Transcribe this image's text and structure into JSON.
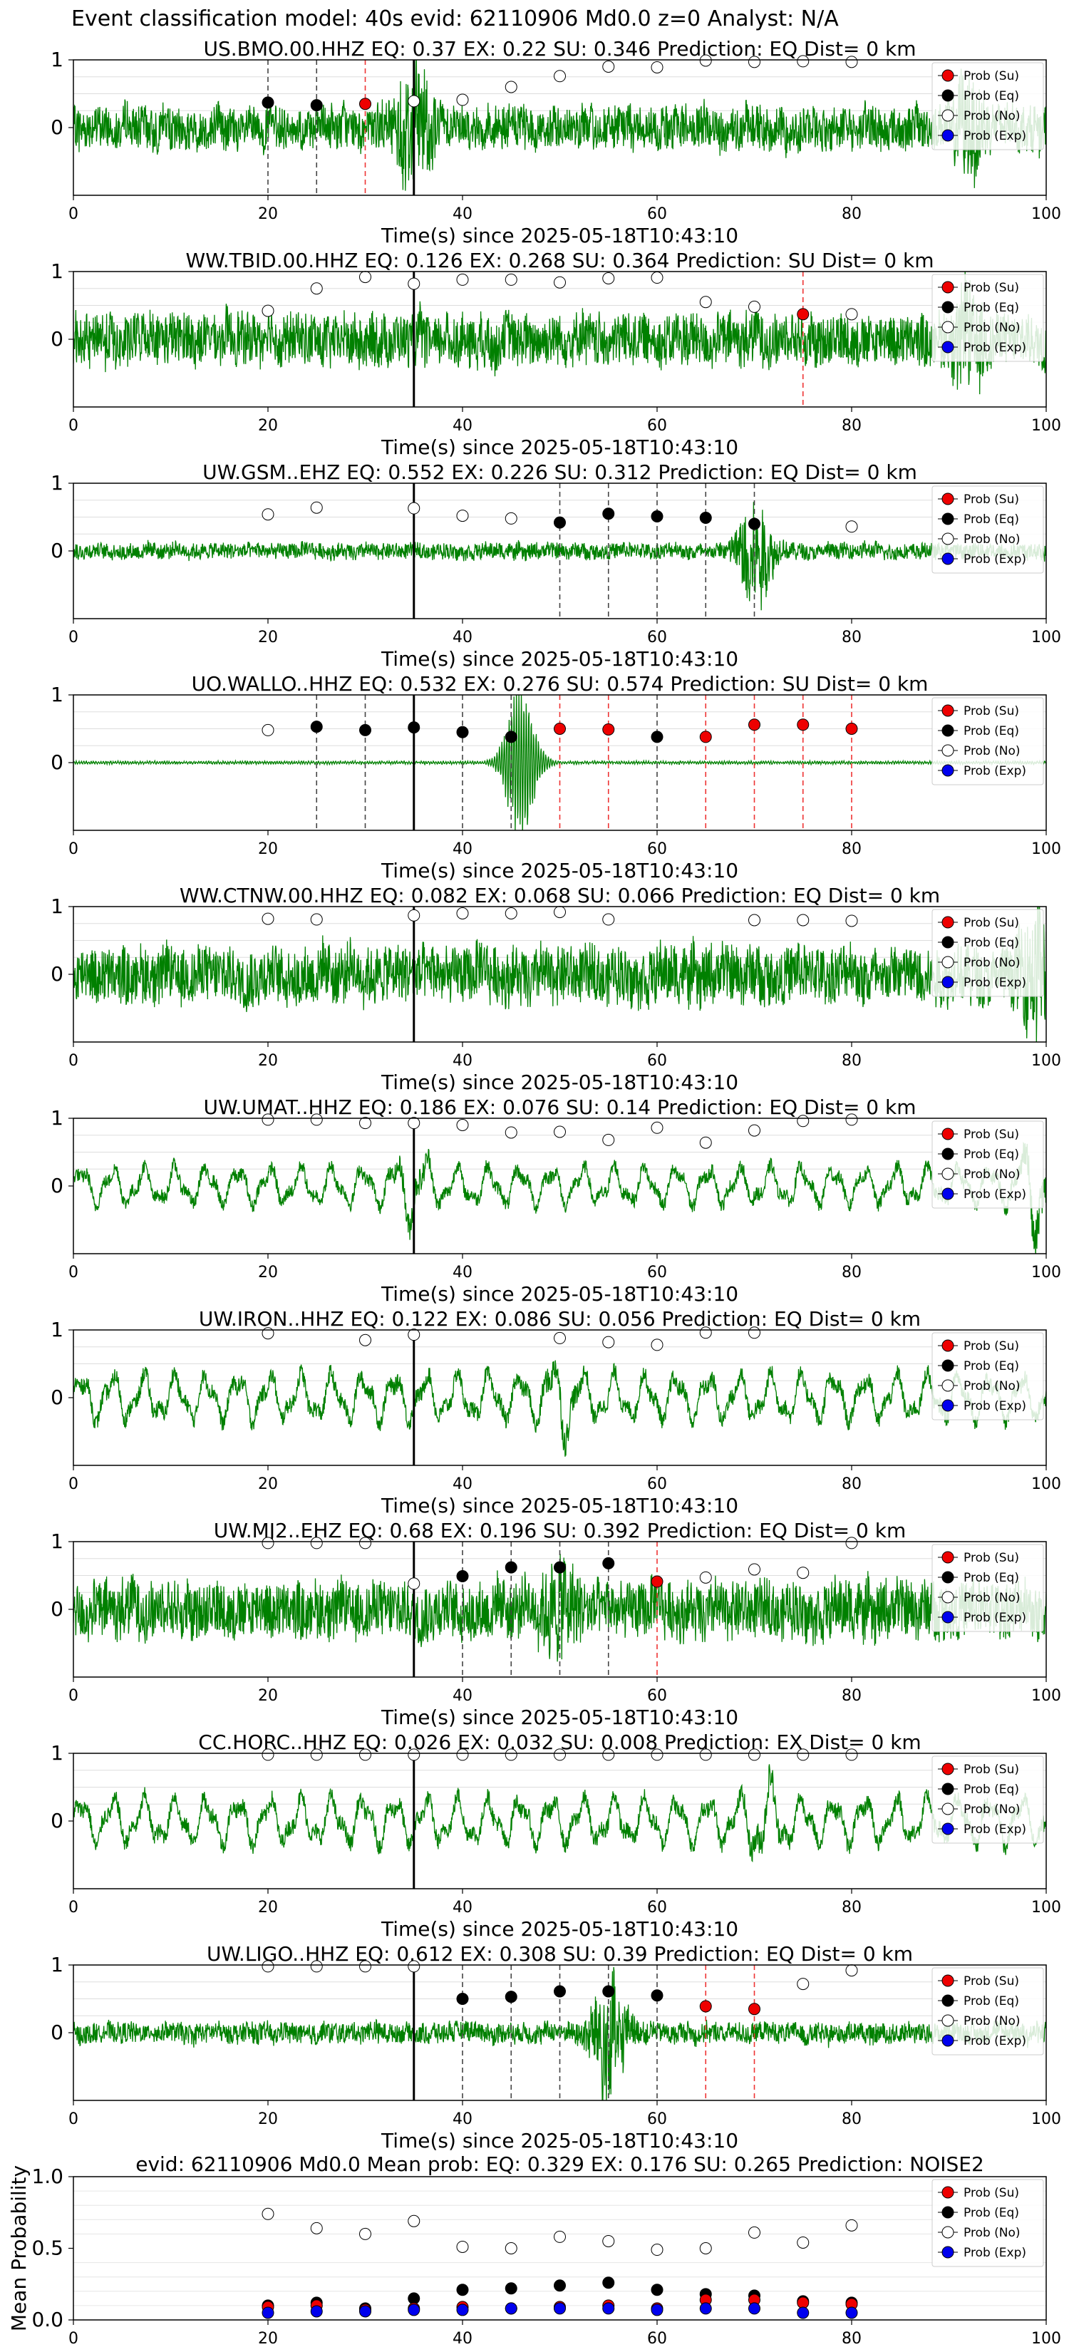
{
  "figure": {
    "suptitle": "Event classification model: 40s evid: 62110906 Md0.0 z=0 Analyst: N/A"
  },
  "legend_labels": [
    "Prob (Su)",
    "Prob (Eq)",
    "Prob (No)",
    "Prob (Exp)"
  ],
  "colors": {
    "trace": "#008000",
    "su": "#ee0000",
    "eq": "#000000",
    "no": "#ffffff",
    "exp": "#0000ee",
    "vline_su": "#ee3333",
    "vline_eq": "#444444"
  },
  "chart_data": [
    {
      "type": "line",
      "title": "US.BMO.00.HHZ   EQ: 0.37  EX: 0.22  SU: 0.346   Prediction: EQ    Dist= 0 km",
      "xlabel": "Time(s) since 2025-05-18T10:43:10",
      "xlim": [
        0,
        100
      ],
      "ylim": [
        -1,
        1
      ],
      "xticks": [
        "0",
        "20",
        "40",
        "60",
        "80",
        "100"
      ],
      "yticks": [
        "1",
        "0"
      ],
      "trace": {
        "amplitude": 0.38,
        "style": "noise",
        "events": [
          [
            35,
            0.9
          ],
          [
            92,
            0.6
          ]
        ]
      },
      "origin_line_x": 35,
      "points": [
        {
          "x": 20,
          "y": 0.37,
          "cls": "eq"
        },
        {
          "x": 25,
          "y": 0.33,
          "cls": "eq"
        },
        {
          "x": 30,
          "y": 0.35,
          "cls": "su"
        },
        {
          "x": 35,
          "y": 0.39,
          "cls": "no"
        },
        {
          "x": 40,
          "y": 0.41,
          "cls": "no"
        },
        {
          "x": 45,
          "y": 0.6,
          "cls": "no"
        },
        {
          "x": 50,
          "y": 0.76,
          "cls": "no"
        },
        {
          "x": 55,
          "y": 0.9,
          "cls": "no"
        },
        {
          "x": 60,
          "y": 0.89,
          "cls": "no"
        },
        {
          "x": 65,
          "y": 0.99,
          "cls": "no"
        },
        {
          "x": 70,
          "y": 0.97,
          "cls": "no"
        },
        {
          "x": 75,
          "y": 0.98,
          "cls": "no"
        },
        {
          "x": 80,
          "y": 0.97,
          "cls": "no"
        }
      ]
    },
    {
      "type": "line",
      "title": "WW.TBID.00.HHZ   EQ: 0.126  EX: 0.268  SU: 0.364   Prediction: SU    Dist= 0 km",
      "xlabel": "Time(s) since 2025-05-18T10:43:10",
      "xlim": [
        0,
        100
      ],
      "ylim": [
        -1,
        1
      ],
      "xticks": [
        "0",
        "20",
        "40",
        "60",
        "80",
        "100"
      ],
      "yticks": [
        "1",
        "0"
      ],
      "trace": {
        "amplitude": 0.45,
        "style": "noise",
        "events": [
          [
            92,
            0.6
          ]
        ]
      },
      "origin_line_x": 35,
      "points": [
        {
          "x": 20,
          "y": 0.42,
          "cls": "no"
        },
        {
          "x": 25,
          "y": 0.75,
          "cls": "no"
        },
        {
          "x": 30,
          "y": 0.92,
          "cls": "no"
        },
        {
          "x": 35,
          "y": 0.82,
          "cls": "no"
        },
        {
          "x": 40,
          "y": 0.88,
          "cls": "no"
        },
        {
          "x": 45,
          "y": 0.88,
          "cls": "no"
        },
        {
          "x": 50,
          "y": 0.84,
          "cls": "no"
        },
        {
          "x": 55,
          "y": 0.9,
          "cls": "no"
        },
        {
          "x": 60,
          "y": 0.91,
          "cls": "no"
        },
        {
          "x": 65,
          "y": 0.55,
          "cls": "no"
        },
        {
          "x": 70,
          "y": 0.48,
          "cls": "no"
        },
        {
          "x": 75,
          "y": 0.37,
          "cls": "su"
        },
        {
          "x": 80,
          "y": 0.37,
          "cls": "no"
        }
      ]
    },
    {
      "type": "line",
      "title": "UW.GSM..EHZ   EQ: 0.552  EX: 0.226  SU: 0.312   Prediction: EQ    Dist= 0 km",
      "xlabel": "Time(s) since 2025-05-18T10:43:10",
      "xlim": [
        0,
        100
      ],
      "ylim": [
        -1,
        1
      ],
      "xticks": [
        "0",
        "20",
        "40",
        "60",
        "80",
        "100"
      ],
      "yticks": [
        "1",
        "0"
      ],
      "trace": {
        "amplitude": 0.14,
        "style": "noise",
        "events": [
          [
            70,
            0.9
          ]
        ]
      },
      "origin_line_x": 35,
      "points": [
        {
          "x": 20,
          "y": 0.54,
          "cls": "no"
        },
        {
          "x": 25,
          "y": 0.64,
          "cls": "no"
        },
        {
          "x": 35,
          "y": 0.63,
          "cls": "no"
        },
        {
          "x": 40,
          "y": 0.52,
          "cls": "no"
        },
        {
          "x": 45,
          "y": 0.48,
          "cls": "no"
        },
        {
          "x": 50,
          "y": 0.42,
          "cls": "eq"
        },
        {
          "x": 55,
          "y": 0.55,
          "cls": "eq"
        },
        {
          "x": 60,
          "y": 0.51,
          "cls": "eq"
        },
        {
          "x": 65,
          "y": 0.49,
          "cls": "eq"
        },
        {
          "x": 70,
          "y": 0.4,
          "cls": "eq"
        },
        {
          "x": 80,
          "y": 0.36,
          "cls": "no"
        }
      ]
    },
    {
      "type": "line",
      "title": "UO.WALLO..HHZ   EQ: 0.532  EX: 0.276  SU: 0.574   Prediction: SU    Dist= 0 km",
      "xlabel": "Time(s) since 2025-05-18T10:43:10",
      "xlim": [
        0,
        100
      ],
      "ylim": [
        -1,
        1
      ],
      "xticks": [
        "0",
        "20",
        "40",
        "60",
        "80",
        "100"
      ],
      "yticks": [
        "1",
        "0"
      ],
      "trace": {
        "amplitude": 0.02,
        "style": "burst",
        "events": [
          [
            46,
            1.2
          ]
        ]
      },
      "origin_line_x": 35,
      "points": [
        {
          "x": 20,
          "y": 0.48,
          "cls": "no"
        },
        {
          "x": 25,
          "y": 0.53,
          "cls": "eq"
        },
        {
          "x": 30,
          "y": 0.48,
          "cls": "eq"
        },
        {
          "x": 35,
          "y": 0.52,
          "cls": "eq"
        },
        {
          "x": 40,
          "y": 0.45,
          "cls": "eq"
        },
        {
          "x": 45,
          "y": 0.38,
          "cls": "eq"
        },
        {
          "x": 50,
          "y": 0.5,
          "cls": "su"
        },
        {
          "x": 55,
          "y": 0.49,
          "cls": "su"
        },
        {
          "x": 60,
          "y": 0.38,
          "cls": "eq"
        },
        {
          "x": 65,
          "y": 0.38,
          "cls": "su"
        },
        {
          "x": 70,
          "y": 0.56,
          "cls": "su"
        },
        {
          "x": 75,
          "y": 0.56,
          "cls": "su"
        },
        {
          "x": 80,
          "y": 0.5,
          "cls": "su"
        }
      ]
    },
    {
      "type": "line",
      "title": "WW.CTNW.00.HHZ   EQ: 0.082  EX: 0.068  SU: 0.066   Prediction: EQ    Dist= 0 km",
      "xlabel": "Time(s) since 2025-05-18T10:43:10",
      "xlim": [
        0,
        100
      ],
      "ylim": [
        -1,
        1
      ],
      "xticks": [
        "0",
        "20",
        "40",
        "60",
        "80",
        "100"
      ],
      "yticks": [
        "1",
        "0"
      ],
      "trace": {
        "amplitude": 0.5,
        "style": "noise",
        "events": [
          [
            99,
            0.8
          ]
        ]
      },
      "origin_line_x": 35,
      "points": [
        {
          "x": 20,
          "y": 0.82,
          "cls": "no"
        },
        {
          "x": 25,
          "y": 0.81,
          "cls": "no"
        },
        {
          "x": 35,
          "y": 0.87,
          "cls": "no"
        },
        {
          "x": 40,
          "y": 0.9,
          "cls": "no"
        },
        {
          "x": 45,
          "y": 0.9,
          "cls": "no"
        },
        {
          "x": 50,
          "y": 0.92,
          "cls": "no"
        },
        {
          "x": 55,
          "y": 0.81,
          "cls": "no"
        },
        {
          "x": 70,
          "y": 0.8,
          "cls": "no"
        },
        {
          "x": 75,
          "y": 0.8,
          "cls": "no"
        },
        {
          "x": 80,
          "y": 0.79,
          "cls": "no"
        }
      ]
    },
    {
      "type": "line",
      "title": "UW.UMAT..HHZ   EQ: 0.186  EX: 0.076  SU: 0.14   Prediction: EQ    Dist= 0 km",
      "xlabel": "Time(s) since 2025-05-18T10:43:10",
      "xlim": [
        0,
        100
      ],
      "ylim": [
        -1,
        1
      ],
      "xticks": [
        "0",
        "20",
        "40",
        "60",
        "80",
        "100"
      ],
      "yticks": [
        "1",
        "0"
      ],
      "trace": {
        "amplitude": 0.45,
        "style": "wave",
        "events": [
          [
            35,
            0.5
          ],
          [
            99,
            0.9
          ]
        ]
      },
      "origin_line_x": 35,
      "points": [
        {
          "x": 20,
          "y": 0.98,
          "cls": "no"
        },
        {
          "x": 25,
          "y": 0.98,
          "cls": "no"
        },
        {
          "x": 30,
          "y": 0.93,
          "cls": "no"
        },
        {
          "x": 35,
          "y": 0.93,
          "cls": "no"
        },
        {
          "x": 40,
          "y": 0.9,
          "cls": "no"
        },
        {
          "x": 45,
          "y": 0.79,
          "cls": "no"
        },
        {
          "x": 50,
          "y": 0.8,
          "cls": "no"
        },
        {
          "x": 55,
          "y": 0.68,
          "cls": "no"
        },
        {
          "x": 60,
          "y": 0.86,
          "cls": "no"
        },
        {
          "x": 65,
          "y": 0.64,
          "cls": "no"
        },
        {
          "x": 70,
          "y": 0.82,
          "cls": "no"
        },
        {
          "x": 75,
          "y": 0.96,
          "cls": "no"
        },
        {
          "x": 80,
          "y": 0.98,
          "cls": "no"
        }
      ]
    },
    {
      "type": "line",
      "title": "UW.IRON..HHZ   EQ: 0.122  EX: 0.086  SU: 0.056   Prediction: EQ    Dist= 0 km",
      "xlabel": "Time(s) since 2025-05-18T10:43:10",
      "xlim": [
        0,
        100
      ],
      "ylim": [
        -1,
        1
      ],
      "xticks": [
        "0",
        "20",
        "40",
        "60",
        "80",
        "100"
      ],
      "yticks": [
        "1",
        "0"
      ],
      "trace": {
        "amplitude": 0.55,
        "style": "wave",
        "events": [
          [
            50,
            0.5
          ]
        ]
      },
      "origin_line_x": 35,
      "points": [
        {
          "x": 20,
          "y": 0.95,
          "cls": "no"
        },
        {
          "x": 30,
          "y": 0.85,
          "cls": "no"
        },
        {
          "x": 35,
          "y": 0.93,
          "cls": "no"
        },
        {
          "x": 50,
          "y": 0.88,
          "cls": "no"
        },
        {
          "x": 55,
          "y": 0.82,
          "cls": "no"
        },
        {
          "x": 60,
          "y": 0.78,
          "cls": "no"
        },
        {
          "x": 65,
          "y": 0.96,
          "cls": "no"
        },
        {
          "x": 70,
          "y": 0.96,
          "cls": "no"
        }
      ]
    },
    {
      "type": "line",
      "title": "UW.MJ2..EHZ   EQ: 0.68  EX: 0.196  SU: 0.392   Prediction: EQ    Dist= 0 km",
      "xlabel": "Time(s) since 2025-05-18T10:43:10",
      "xlim": [
        0,
        100
      ],
      "ylim": [
        -1,
        1
      ],
      "xticks": [
        "0",
        "20",
        "40",
        "60",
        "80",
        "100"
      ],
      "yticks": [
        "1",
        "0"
      ],
      "trace": {
        "amplitude": 0.5,
        "style": "noise",
        "events": [
          [
            50,
            0.5
          ]
        ]
      },
      "origin_line_x": 35,
      "points": [
        {
          "x": 20,
          "y": 0.98,
          "cls": "no"
        },
        {
          "x": 25,
          "y": 0.98,
          "cls": "no"
        },
        {
          "x": 30,
          "y": 0.98,
          "cls": "no"
        },
        {
          "x": 35,
          "y": 0.38,
          "cls": "no"
        },
        {
          "x": 40,
          "y": 0.49,
          "cls": "eq"
        },
        {
          "x": 45,
          "y": 0.62,
          "cls": "eq"
        },
        {
          "x": 50,
          "y": 0.62,
          "cls": "eq"
        },
        {
          "x": 55,
          "y": 0.68,
          "cls": "eq"
        },
        {
          "x": 60,
          "y": 0.41,
          "cls": "su"
        },
        {
          "x": 65,
          "y": 0.47,
          "cls": "no"
        },
        {
          "x": 70,
          "y": 0.59,
          "cls": "no"
        },
        {
          "x": 75,
          "y": 0.54,
          "cls": "no"
        },
        {
          "x": 80,
          "y": 0.98,
          "cls": "no"
        }
      ]
    },
    {
      "type": "line",
      "title": "CC.HORC..HHZ   EQ: 0.026  EX: 0.032  SU: 0.008   Prediction: EX    Dist= 0 km",
      "xlabel": "Time(s) since 2025-05-18T10:43:10",
      "xlim": [
        0,
        100
      ],
      "ylim": [
        -1,
        1
      ],
      "xticks": [
        "0",
        "20",
        "40",
        "60",
        "80",
        "100"
      ],
      "yticks": [
        "1",
        "0"
      ],
      "trace": {
        "amplitude": 0.55,
        "style": "wave",
        "events": [
          [
            71,
            0.5
          ]
        ]
      },
      "origin_line_x": 35,
      "points": [
        {
          "x": 20,
          "y": 0.98,
          "cls": "no"
        },
        {
          "x": 25,
          "y": 0.98,
          "cls": "no"
        },
        {
          "x": 30,
          "y": 0.98,
          "cls": "no"
        },
        {
          "x": 35,
          "y": 0.98,
          "cls": "no"
        },
        {
          "x": 40,
          "y": 0.98,
          "cls": "no"
        },
        {
          "x": 45,
          "y": 0.98,
          "cls": "no"
        },
        {
          "x": 50,
          "y": 0.98,
          "cls": "no"
        },
        {
          "x": 55,
          "y": 0.98,
          "cls": "no"
        },
        {
          "x": 60,
          "y": 0.98,
          "cls": "no"
        },
        {
          "x": 65,
          "y": 0.98,
          "cls": "no"
        },
        {
          "x": 70,
          "y": 0.98,
          "cls": "no"
        },
        {
          "x": 75,
          "y": 0.98,
          "cls": "no"
        },
        {
          "x": 80,
          "y": 0.98,
          "cls": "no"
        }
      ]
    },
    {
      "type": "line",
      "title": "UW.LIGO..HHZ   EQ: 0.612  EX: 0.308  SU: 0.39   Prediction: EQ    Dist= 0 km",
      "xlabel": "Time(s) since 2025-05-18T10:43:10",
      "xlim": [
        0,
        100
      ],
      "ylim": [
        -1,
        1
      ],
      "xticks": [
        "0",
        "20",
        "40",
        "60",
        "80",
        "100"
      ],
      "yticks": [
        "1",
        "0"
      ],
      "trace": {
        "amplitude": 0.18,
        "style": "noise",
        "events": [
          [
            55,
            1.0
          ]
        ]
      },
      "origin_line_x": 35,
      "points": [
        {
          "x": 20,
          "y": 0.98,
          "cls": "no"
        },
        {
          "x": 25,
          "y": 0.98,
          "cls": "no"
        },
        {
          "x": 30,
          "y": 0.98,
          "cls": "no"
        },
        {
          "x": 35,
          "y": 0.98,
          "cls": "no"
        },
        {
          "x": 40,
          "y": 0.5,
          "cls": "eq"
        },
        {
          "x": 45,
          "y": 0.53,
          "cls": "eq"
        },
        {
          "x": 50,
          "y": 0.61,
          "cls": "eq"
        },
        {
          "x": 55,
          "y": 0.61,
          "cls": "eq"
        },
        {
          "x": 60,
          "y": 0.55,
          "cls": "eq"
        },
        {
          "x": 65,
          "y": 0.39,
          "cls": "su"
        },
        {
          "x": 70,
          "y": 0.35,
          "cls": "su"
        },
        {
          "x": 75,
          "y": 0.72,
          "cls": "no"
        },
        {
          "x": 80,
          "y": 0.92,
          "cls": "no"
        }
      ]
    },
    {
      "type": "scatter",
      "title": "evid: 62110906   Md0.0    Mean prob:    EQ: 0.329   EX: 0.176   SU: 0.265    Prediction: NOISE2",
      "xlabel": "",
      "ylabel": "Mean Probability",
      "xlim": [
        0,
        100
      ],
      "ylim": [
        0,
        1
      ],
      "xticks": [
        "0",
        "20",
        "40",
        "60",
        "80",
        "100"
      ],
      "yticks": [
        "1.0",
        "0.5",
        "0.0"
      ],
      "x": [
        20,
        25,
        30,
        35,
        40,
        45,
        50,
        55,
        60,
        65,
        70,
        75,
        80
      ],
      "series": [
        {
          "name": "Prob (No)",
          "cls": "no",
          "values": [
            0.74,
            0.64,
            0.6,
            0.69,
            0.51,
            0.5,
            0.58,
            0.55,
            0.49,
            0.5,
            0.61,
            0.54,
            0.66
          ]
        },
        {
          "name": "Prob (Eq)",
          "cls": "eq",
          "values": [
            0.1,
            0.12,
            0.08,
            0.15,
            0.21,
            0.22,
            0.24,
            0.26,
            0.21,
            0.18,
            0.17,
            0.13,
            0.12
          ]
        },
        {
          "name": "Prob (Su)",
          "cls": "su",
          "values": [
            0.09,
            0.1,
            0.07,
            0.08,
            0.09,
            0.08,
            0.09,
            0.1,
            0.08,
            0.14,
            0.14,
            0.12,
            0.11
          ]
        },
        {
          "name": "Prob (Exp)",
          "cls": "exp",
          "values": [
            0.05,
            0.06,
            0.06,
            0.07,
            0.07,
            0.08,
            0.08,
            0.08,
            0.07,
            0.08,
            0.08,
            0.05,
            0.05
          ]
        }
      ]
    }
  ]
}
